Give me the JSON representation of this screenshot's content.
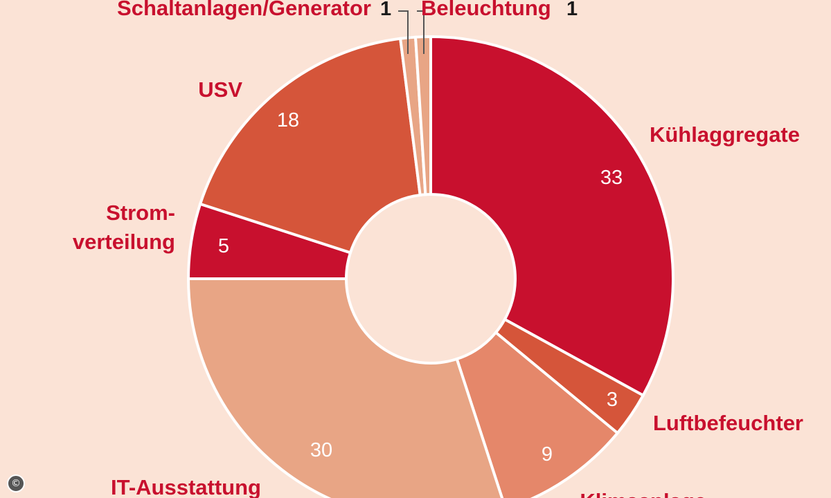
{
  "chart_data": {
    "type": "pie",
    "donut": true,
    "title": "",
    "categories": [
      "Kühlaggregate",
      "Luftbefeuchter",
      "Klimaanlage",
      "IT-Ausstattung",
      "Strom-verteilung",
      "USV",
      "Schaltanlagen/Generator",
      "Beleuchtung"
    ],
    "values": [
      33,
      3,
      9,
      30,
      5,
      18,
      1,
      1
    ],
    "colors": [
      "#c8102e",
      "#d5553a",
      "#e5876a",
      "#e8a585",
      "#c8102e",
      "#d5553a",
      "#e8a585",
      "#e8a585"
    ],
    "label_lines": [
      [
        "Kühlaggregate"
      ],
      [
        "Luftbefeuchter"
      ],
      [
        "Klimaanlage"
      ],
      [
        "IT-Ausstattung"
      ],
      [
        "Strom-",
        "verteilung"
      ],
      [
        "USV"
      ],
      [
        "Schaltanlagen/Generator"
      ],
      [
        "Beleuchtung"
      ]
    ]
  },
  "copyright_symbol": "©"
}
